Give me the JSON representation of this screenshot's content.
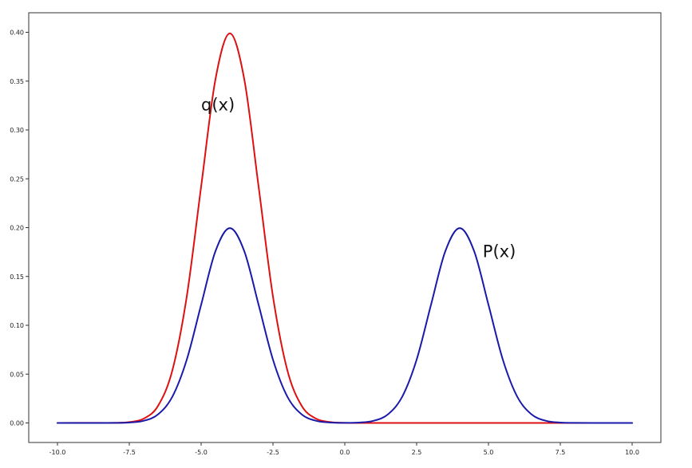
{
  "chart_data": {
    "type": "line",
    "title": "",
    "xlabel": "",
    "ylabel": "",
    "xlim": [
      -11.0,
      11.0
    ],
    "ylim": [
      -0.02,
      0.42
    ],
    "x_ticks": [
      -10.0,
      -7.5,
      -5.0,
      -2.5,
      0.0,
      2.5,
      5.0,
      7.5,
      10.0
    ],
    "x_tick_labels": [
      "-10.0",
      "-7.5",
      "-5.0",
      "-2.5",
      "0.0",
      "2.5",
      "5.0",
      "7.5",
      "10.0"
    ],
    "y_ticks": [
      0.0,
      0.05,
      0.1,
      0.15,
      0.2,
      0.25,
      0.3,
      0.35,
      0.4
    ],
    "y_tick_labels": [
      "0.00",
      "0.05",
      "0.10",
      "0.15",
      "0.20",
      "0.25",
      "0.30",
      "0.35",
      "0.40"
    ],
    "grid": false,
    "series": [
      {
        "color": "#dd1111",
        "x": [
          -10,
          -9,
          -8,
          -7.5,
          -7,
          -6.5,
          -6,
          -5.5,
          -5,
          -4.5,
          -4,
          -3.5,
          -3,
          -2.5,
          -2,
          -1.5,
          -1,
          -0.5,
          0,
          1,
          2,
          4,
          6,
          8,
          10
        ],
        "values": [
          0.0,
          0.0001,
          0.0001,
          0.0009,
          0.0044,
          0.0175,
          0.054,
          0.1295,
          0.242,
          0.3521,
          0.3989,
          0.3521,
          0.242,
          0.1295,
          0.054,
          0.0175,
          0.0044,
          0.0009,
          0.0001,
          0.0,
          0.0,
          0.0,
          0.0,
          0.0,
          0.0
        ]
      },
      {
        "color": "#1a1aaa",
        "x": [
          -10,
          -9,
          -8,
          -7.5,
          -7,
          -6.5,
          -6,
          -5.5,
          -5,
          -4.5,
          -4,
          -3.5,
          -3,
          -2.5,
          -2,
          -1.5,
          -1,
          -0.5,
          0,
          0.5,
          1,
          1.5,
          2,
          2.5,
          3,
          3.5,
          4,
          4.5,
          5,
          5.5,
          6,
          6.5,
          7,
          7.5,
          8,
          9,
          10
        ],
        "values": [
          0.0,
          0.0,
          0.0001,
          0.0004,
          0.0022,
          0.0088,
          0.027,
          0.0648,
          0.121,
          0.176,
          0.1995,
          0.176,
          0.121,
          0.0648,
          0.027,
          0.0088,
          0.0022,
          0.0004,
          0.0001,
          0.0004,
          0.0022,
          0.0088,
          0.027,
          0.0648,
          0.121,
          0.176,
          0.1995,
          0.176,
          0.121,
          0.0648,
          0.027,
          0.0088,
          0.0022,
          0.0004,
          0.0001,
          0.0,
          0.0
        ]
      }
    ],
    "annotations": [
      {
        "text": "q(x)",
        "x": -5.0,
        "y": 0.32
      },
      {
        "text": "P(x)",
        "x": 4.8,
        "y": 0.17
      }
    ]
  }
}
